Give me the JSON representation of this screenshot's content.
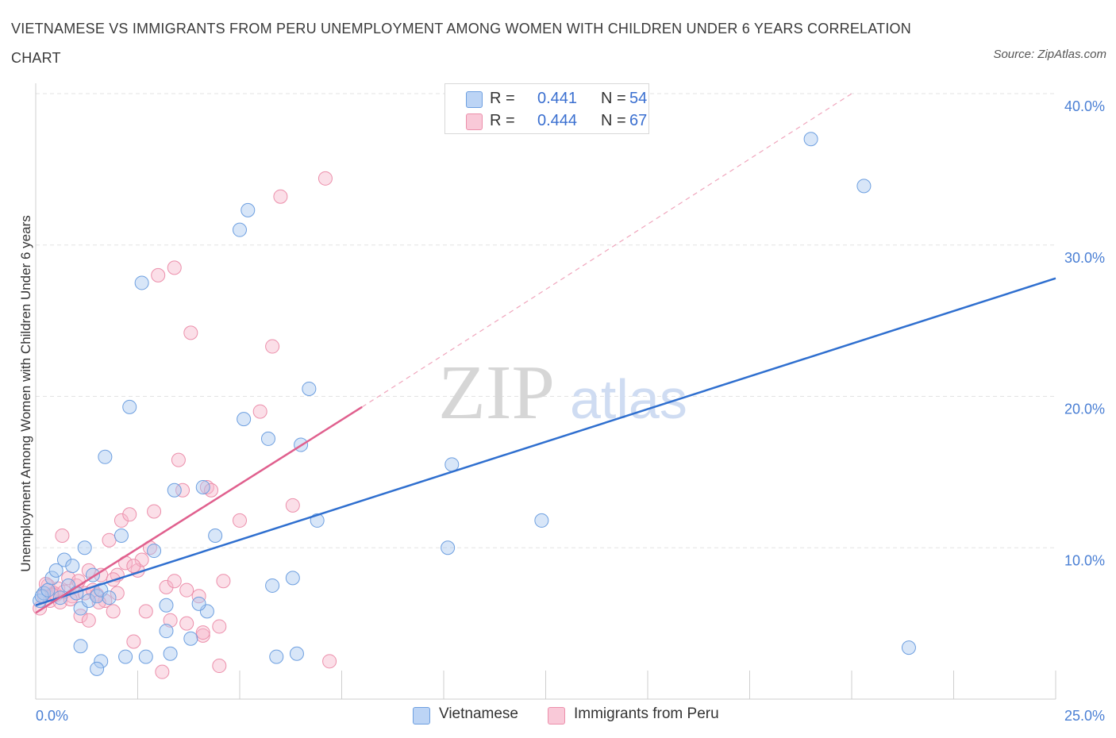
{
  "title": "VIETNAMESE VS IMMIGRANTS FROM PERU UNEMPLOYMENT AMONG WOMEN WITH CHILDREN UNDER 6 YEARS CORRELATION CHART",
  "source": "Source: ZipAtlas.com",
  "watermark": {
    "zip": "ZIP",
    "atlas": "atlas"
  },
  "stats": {
    "vietnamese": {
      "r_label": "R =",
      "r_value": "0.441",
      "n_label": "N =",
      "n_value": "54"
    },
    "peru": {
      "r_label": "R =",
      "r_value": "0.444",
      "n_label": "N =",
      "n_value": "67"
    }
  },
  "legend": {
    "vietnamese": "Vietnamese",
    "peru": "Immigrants from Peru"
  },
  "colors": {
    "vietnamese_fill": "#a9c7f0",
    "vietnamese_stroke": "#6d9fe0",
    "vietnamese_line": "#2f6fcf",
    "peru_fill": "#f7b8cc",
    "peru_stroke": "#ec8fab",
    "peru_line": "#e0608e",
    "axis_text": "#4a7fd4",
    "grid": "#e3e3e3"
  },
  "chart_data": {
    "type": "scatter",
    "title": "VIETNAMESE VS IMMIGRANTS FROM PERU UNEMPLOYMENT AMONG WOMEN WITH CHILDREN UNDER 6 YEARS CORRELATION CHART",
    "xlabel": "",
    "ylabel": "Unemployment Among Women with Children Under 6 years",
    "xlim": [
      0,
      25
    ],
    "ylim": [
      0,
      40
    ],
    "x_tick_labels": [
      "0.0%",
      "25.0%"
    ],
    "y_ticks": [
      10,
      20,
      30,
      40
    ],
    "y_tick_labels": [
      "10.0%",
      "20.0%",
      "30.0%",
      "40.0%"
    ],
    "grid": true,
    "series": [
      {
        "name": "Vietnamese",
        "r": 0.441,
        "n": 54,
        "trend": {
          "x": [
            0,
            25
          ],
          "y": [
            6.2,
            27.8
          ],
          "style": "solid"
        },
        "points": [
          [
            0.1,
            6.5
          ],
          [
            0.2,
            7.0
          ],
          [
            0.15,
            6.8
          ],
          [
            0.3,
            7.2
          ],
          [
            0.4,
            8.0
          ],
          [
            0.5,
            8.5
          ],
          [
            0.6,
            6.7
          ],
          [
            0.7,
            9.2
          ],
          [
            0.8,
            7.5
          ],
          [
            0.9,
            8.8
          ],
          [
            1.0,
            7.0
          ],
          [
            1.1,
            6.0
          ],
          [
            1.2,
            10.0
          ],
          [
            1.3,
            6.5
          ],
          [
            1.4,
            8.2
          ],
          [
            1.5,
            6.8
          ],
          [
            1.6,
            7.2
          ],
          [
            1.7,
            16.0
          ],
          [
            1.8,
            6.7
          ],
          [
            2.1,
            10.8
          ],
          [
            2.3,
            19.3
          ],
          [
            2.6,
            27.5
          ],
          [
            2.9,
            9.8
          ],
          [
            3.2,
            6.2
          ],
          [
            3.4,
            13.8
          ],
          [
            4.2,
            5.8
          ],
          [
            4.4,
            10.8
          ],
          [
            5.0,
            31.0
          ],
          [
            5.2,
            32.3
          ],
          [
            5.1,
            18.5
          ],
          [
            5.7,
            17.2
          ],
          [
            5.8,
            7.5
          ],
          [
            6.3,
            8.0
          ],
          [
            6.5,
            16.8
          ],
          [
            6.7,
            20.5
          ],
          [
            6.9,
            11.8
          ],
          [
            2.2,
            2.8
          ],
          [
            1.6,
            2.5
          ],
          [
            3.2,
            4.5
          ],
          [
            4.1,
            14.0
          ],
          [
            1.1,
            3.5
          ],
          [
            10.2,
            15.5
          ],
          [
            10.1,
            10.0
          ],
          [
            12.4,
            11.8
          ],
          [
            19.0,
            37.0
          ],
          [
            20.3,
            33.9
          ],
          [
            21.4,
            3.4
          ],
          [
            2.7,
            2.8
          ],
          [
            4.0,
            6.3
          ],
          [
            5.9,
            2.8
          ],
          [
            6.4,
            3.0
          ],
          [
            3.8,
            4.0
          ],
          [
            3.3,
            3.0
          ],
          [
            1.5,
            2.0
          ]
        ]
      },
      {
        "name": "Immigrants from Peru",
        "r": 0.444,
        "n": 67,
        "trend": {
          "x": [
            0,
            8
          ],
          "y": [
            5.7,
            19.3
          ],
          "style": "solid",
          "extension": {
            "x": [
              8,
              20
            ],
            "y": [
              19.3,
              40.0
            ],
            "style": "dashed"
          }
        },
        "points": [
          [
            0.1,
            6.0
          ],
          [
            0.2,
            6.8
          ],
          [
            0.3,
            7.5
          ],
          [
            0.35,
            6.5
          ],
          [
            0.45,
            7.0
          ],
          [
            0.5,
            6.9
          ],
          [
            0.55,
            7.3
          ],
          [
            0.6,
            6.4
          ],
          [
            0.7,
            7.1
          ],
          [
            0.8,
            8.0
          ],
          [
            0.9,
            6.8
          ],
          [
            1.0,
            7.5
          ],
          [
            1.1,
            5.5
          ],
          [
            1.2,
            7.0
          ],
          [
            1.3,
            8.5
          ],
          [
            1.4,
            7.2
          ],
          [
            1.5,
            6.9
          ],
          [
            1.6,
            8.2
          ],
          [
            1.7,
            6.5
          ],
          [
            1.8,
            10.5
          ],
          [
            1.9,
            5.8
          ],
          [
            2.0,
            7.0
          ],
          [
            2.1,
            11.8
          ],
          [
            2.2,
            9.0
          ],
          [
            2.3,
            12.2
          ],
          [
            2.5,
            8.5
          ],
          [
            2.6,
            9.2
          ],
          [
            2.7,
            5.8
          ],
          [
            2.8,
            10.0
          ],
          [
            2.9,
            12.4
          ],
          [
            3.0,
            28.0
          ],
          [
            3.2,
            7.4
          ],
          [
            3.4,
            28.5
          ],
          [
            3.5,
            15.8
          ],
          [
            3.6,
            13.8
          ],
          [
            3.7,
            7.2
          ],
          [
            3.8,
            24.2
          ],
          [
            4.0,
            6.8
          ],
          [
            4.2,
            14.0
          ],
          [
            4.3,
            13.8
          ],
          [
            4.6,
            7.8
          ],
          [
            5.0,
            11.8
          ],
          [
            5.5,
            19.0
          ],
          [
            5.8,
            23.3
          ],
          [
            6.0,
            33.2
          ],
          [
            6.3,
            12.8
          ],
          [
            7.1,
            34.4
          ],
          [
            7.2,
            2.5
          ],
          [
            4.5,
            4.8
          ],
          [
            4.1,
            4.2
          ],
          [
            3.1,
            1.8
          ],
          [
            4.5,
            2.2
          ],
          [
            3.3,
            5.2
          ],
          [
            2.4,
            3.8
          ],
          [
            1.3,
            5.2
          ],
          [
            0.4,
            6.9
          ],
          [
            0.65,
            10.8
          ],
          [
            2.0,
            8.2
          ],
          [
            1.05,
            7.8
          ],
          [
            0.25,
            7.6
          ],
          [
            3.4,
            7.8
          ],
          [
            4.1,
            4.4
          ],
          [
            2.4,
            8.8
          ],
          [
            1.55,
            6.4
          ],
          [
            0.85,
            6.6
          ],
          [
            1.9,
            7.9
          ],
          [
            3.7,
            5.0
          ]
        ]
      }
    ]
  }
}
